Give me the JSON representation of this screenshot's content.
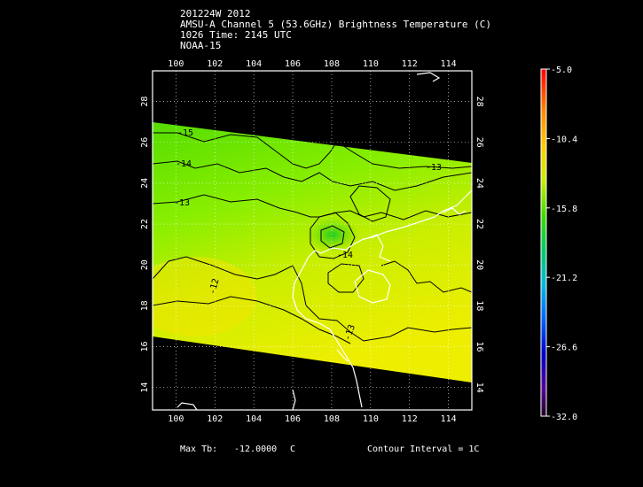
{
  "header": {
    "line1": "201224W 2012",
    "line2": "AMSU-A Channel 5 (53.6GHz) Brightness Temperature (C)",
    "line3": "1026 Time: 2145 UTC",
    "line4": "NOAA-15"
  },
  "map": {
    "lon_ticks": [
      "100",
      "102",
      "104",
      "106",
      "108",
      "110",
      "112",
      "114"
    ],
    "lat_ticks": [
      "14",
      "16",
      "18",
      "20",
      "22",
      "24",
      "26",
      "28"
    ],
    "lon_range": [
      98.8,
      115.2
    ],
    "lat_range": [
      12.9,
      29.5
    ],
    "contours": [
      {
        "label": "-15"
      },
      {
        "label": "-14"
      },
      {
        "label": "-13"
      },
      {
        "label": "-13"
      },
      {
        "label": "-12"
      },
      {
        "label": "-13"
      },
      {
        "label": "-14"
      }
    ]
  },
  "colorbar": {
    "labels": [
      "-5.0",
      "-10.4",
      "-15.8",
      "-21.2",
      "-26.6",
      "-32.0"
    ],
    "stops": [
      "#ff0000",
      "#ff9900",
      "#ffdd00",
      "#99ee00",
      "#00cc33",
      "#00cccc",
      "#0066ff",
      "#0000cc",
      "#660099",
      "#330033"
    ]
  },
  "footer": {
    "max_tb_label": "Max Tb:",
    "max_tb_value": "-12.0000",
    "max_tb_unit": "C",
    "contour_interval": "Contour Interval = 1C"
  }
}
